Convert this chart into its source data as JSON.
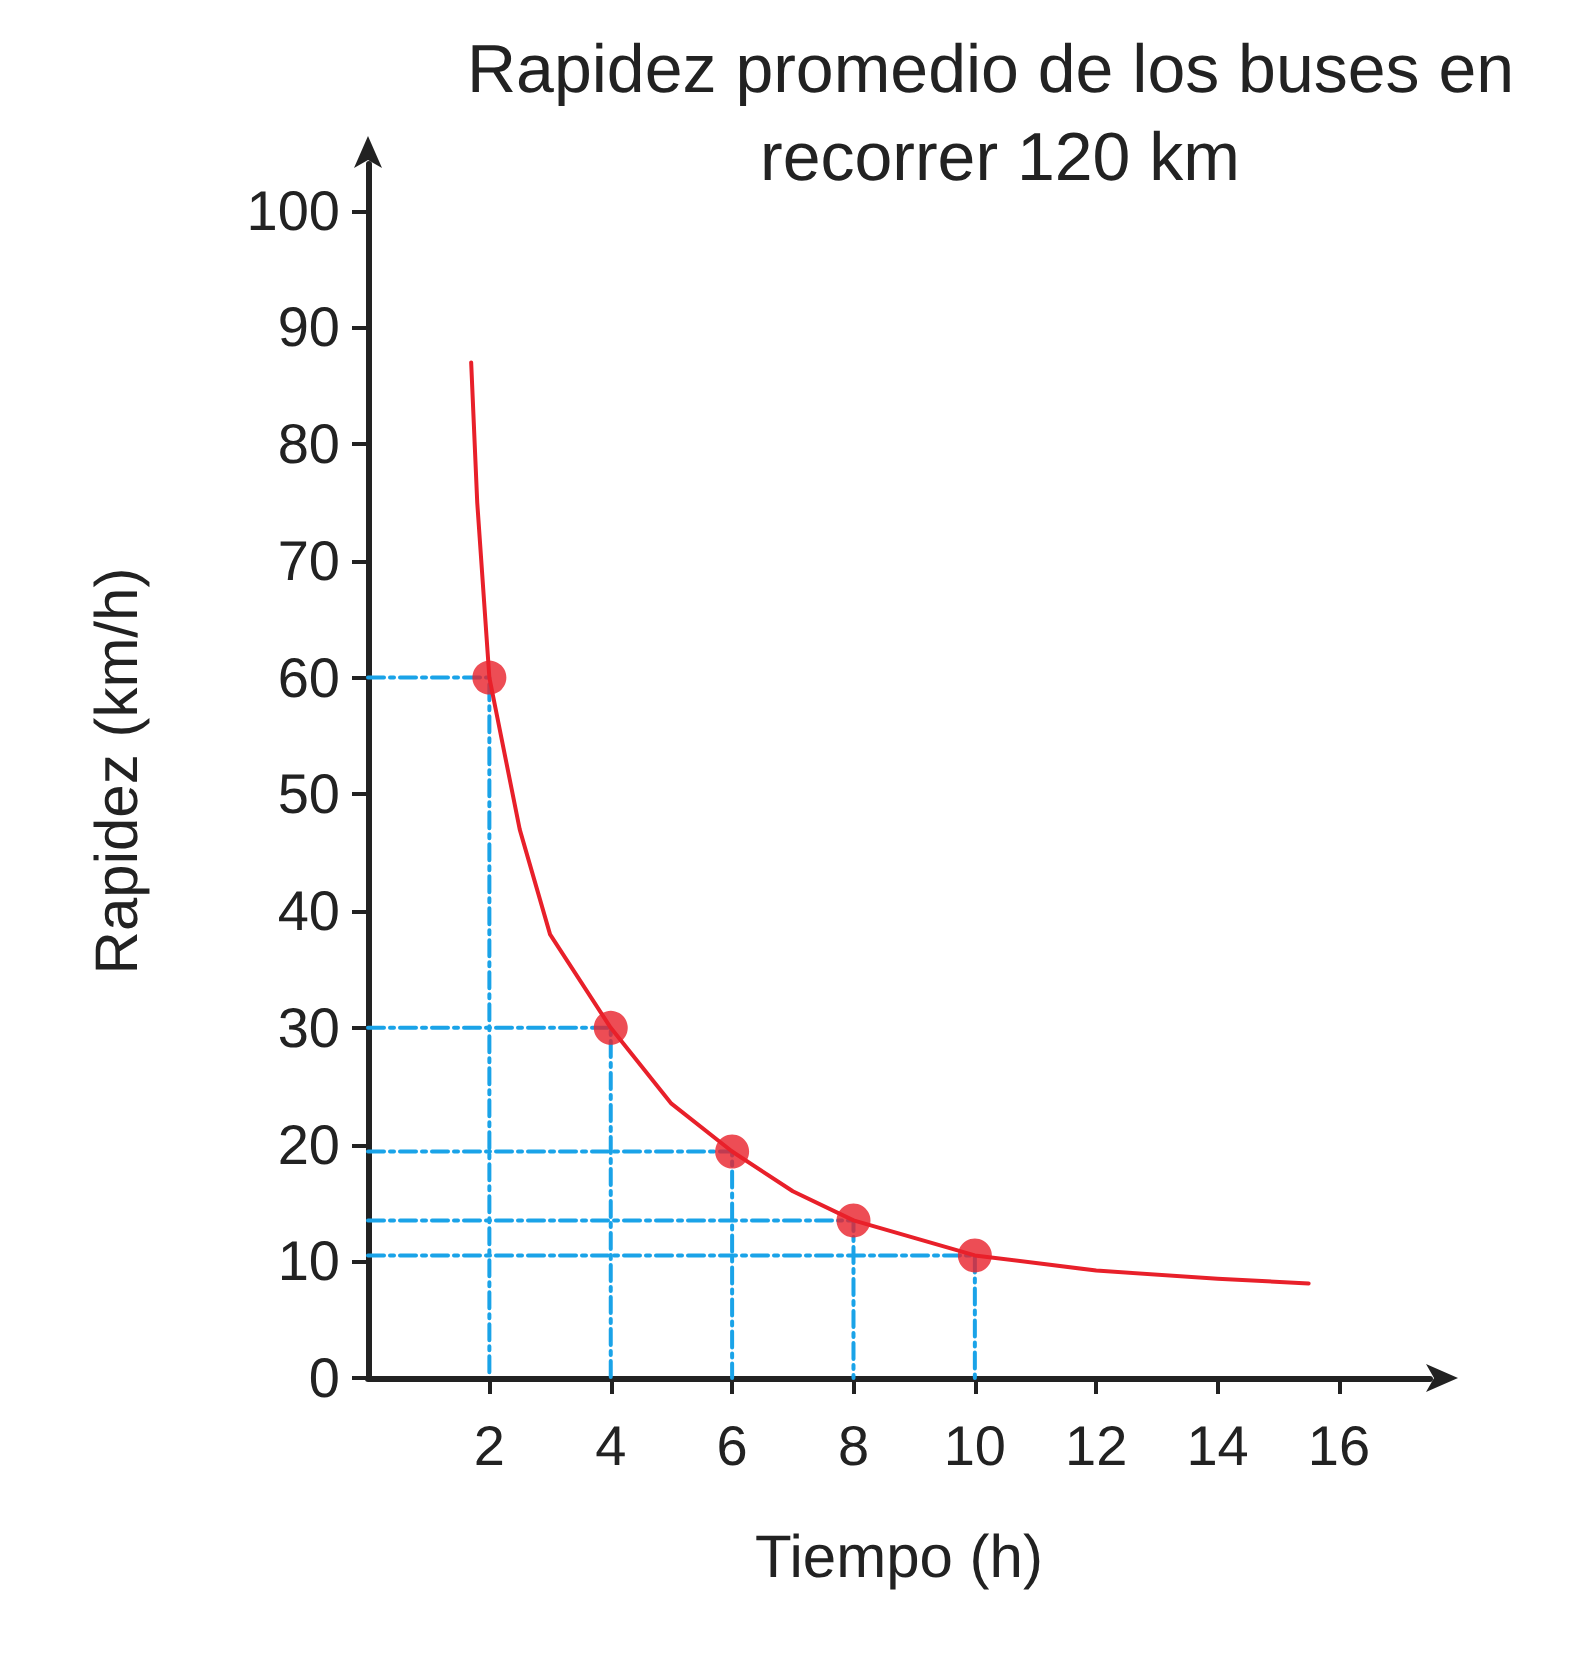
{
  "chart_data": {
    "type": "line",
    "title": "Rapidez promedio de los buses en recorrer 120 km",
    "xlabel": "Tiempo (h)",
    "ylabel": "Rapidez (km/h)",
    "xlim": [
      0,
      17.5
    ],
    "xticks": [
      2,
      4,
      6,
      8,
      10,
      12,
      14,
      16
    ],
    "ylim": [
      0,
      104
    ],
    "yticks": [
      0,
      10,
      20,
      30,
      40,
      50,
      60,
      70,
      80,
      90,
      100
    ],
    "grid": false,
    "series": [
      {
        "color": "#e8202a",
        "marker": "none",
        "x": [
          1.7,
          1.8,
          2,
          2.5,
          3,
          4,
          5,
          6,
          7,
          8,
          9,
          10,
          12,
          14,
          15.5
        ],
        "values": [
          87,
          75,
          60,
          47,
          38,
          30,
          23.5,
          19.4,
          16,
          13.5,
          12,
          10.5,
          9.2,
          8.5,
          8.1
        ]
      },
      {
        "color": "#1aa3e8",
        "marker": "none",
        "line_style": "dashed",
        "x": [
          0,
          2,
          2
        ],
        "values": [
          60,
          60,
          0
        ]
      },
      {
        "color": "#1aa3e8",
        "marker": "none",
        "line_style": "dashed",
        "x": [
          0,
          4,
          4
        ],
        "values": [
          30,
          30,
          0
        ]
      },
      {
        "color": "#1aa3e8",
        "marker": "none",
        "line_style": "dashed",
        "x": [
          0,
          6,
          6
        ],
        "values": [
          19.4,
          19.4,
          0
        ]
      },
      {
        "color": "#1aa3e8",
        "marker": "none",
        "line_style": "dashed",
        "x": [
          0,
          8,
          8
        ],
        "values": [
          13.5,
          13.5,
          0
        ]
      },
      {
        "color": "#1aa3e8",
        "marker": "none",
        "line_style": "dashed",
        "x": [
          0,
          10,
          10
        ],
        "values": [
          10.5,
          10.5,
          0
        ]
      },
      {
        "type": "scatter",
        "color": "#e8202a",
        "marker": "circle",
        "x": [
          2,
          4,
          6,
          8,
          10
        ],
        "values": [
          60,
          30,
          19.4,
          13.5,
          10.5
        ]
      }
    ]
  }
}
